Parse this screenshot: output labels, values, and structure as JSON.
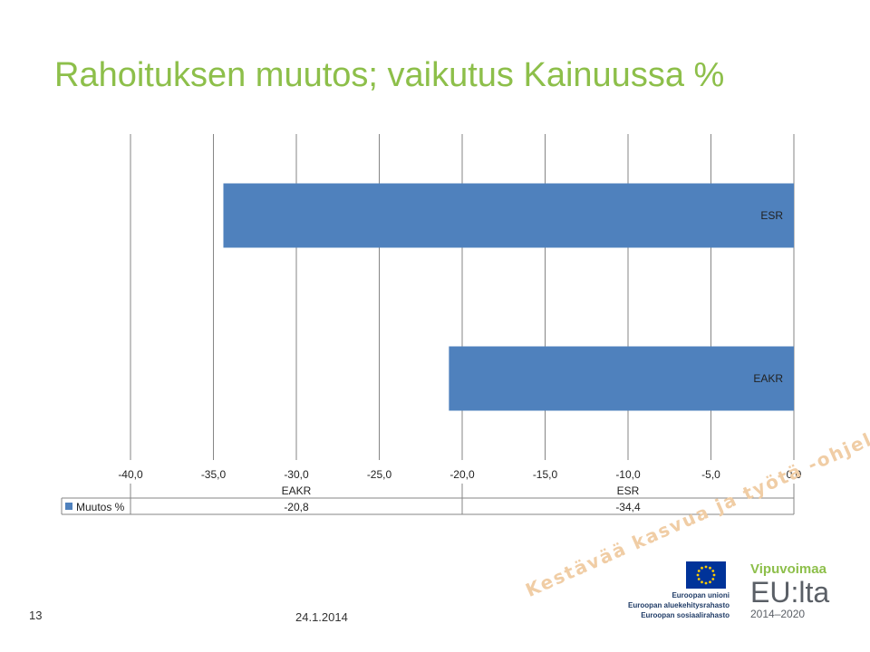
{
  "slide": {
    "title": "Rahoituksen muutos; vaikutus Kainuussa %",
    "number": "13",
    "date": "24.1.2014",
    "slogan": "Kestävää kasvua ja työtä -ohjelma"
  },
  "logos": {
    "eu": {
      "lines": [
        "Euroopan unioni",
        "Euroopan aluekehitysrahasto",
        "Euroopan sosiaalirahasto"
      ],
      "flag_color": "#003399",
      "star_color": "#ffcc00"
    },
    "vipuvoimaa": {
      "name": "Vipuvoimaa",
      "eu_text": "EU:lta",
      "years": "2014–2020"
    }
  },
  "colors": {
    "title": "#8dbf4a",
    "bar": "#4f81bd"
  },
  "chart_data": {
    "type": "bar",
    "orientation": "horizontal",
    "categories": [
      "EAKR",
      "ESR"
    ],
    "series": [
      {
        "name": "Muutos %",
        "values": [
          -20.8,
          -34.4
        ]
      }
    ],
    "xlim": [
      -40,
      0
    ],
    "x_ticks": [
      "-40,0",
      "-35,0",
      "-30,0",
      "-25,0",
      "-20,0",
      "-15,0",
      "-10,0",
      "-5,0",
      "0,0"
    ],
    "value_labels": [
      "-20,8",
      "-34,4"
    ],
    "grid": "vertical",
    "data_table": true,
    "legend_position": "in data table"
  }
}
